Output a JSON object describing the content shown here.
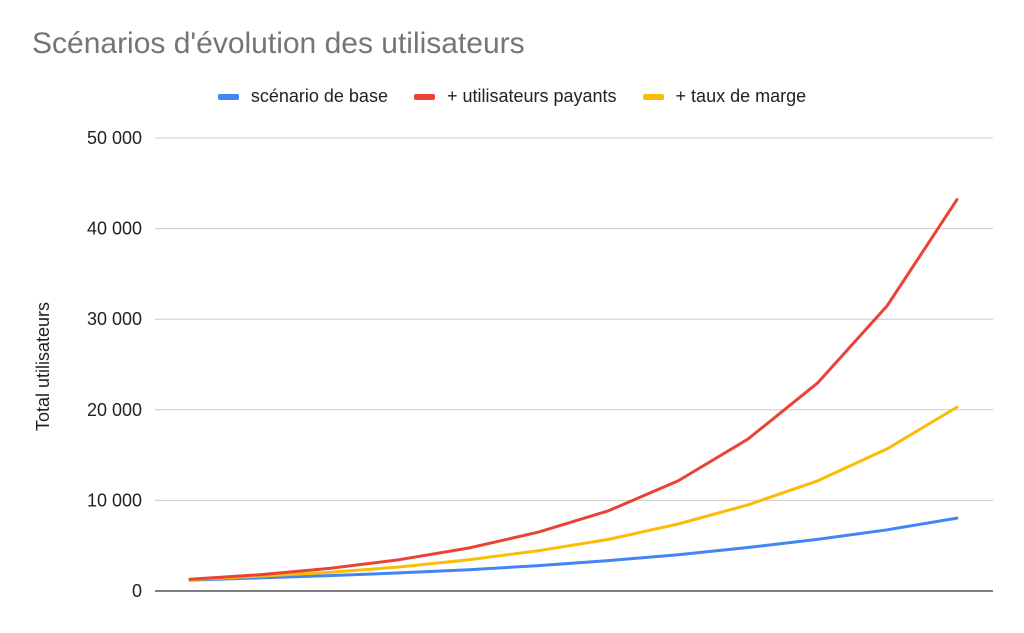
{
  "chart_data": {
    "type": "line",
    "title": "Scénarios d'évolution des utilisateurs",
    "xlabel": "",
    "ylabel": "Total utilisateurs",
    "ylim": [
      0,
      50000
    ],
    "yticks": [
      0,
      10000,
      20000,
      30000,
      40000,
      50000
    ],
    "ytick_labels": [
      "0",
      "10 000",
      "20 000",
      "30 000",
      "40 000",
      "50 000"
    ],
    "grid": true,
    "legend_position": "top",
    "x": [
      1,
      2,
      3,
      4,
      5,
      6,
      7,
      8,
      9,
      10,
      11,
      12
    ],
    "series": [
      {
        "name": "scénario de base",
        "color": "#4285F4",
        "values": [
          1200,
          1450,
          1700,
          2000,
          2350,
          2800,
          3350,
          4000,
          4800,
          5700,
          6750,
          8050
        ]
      },
      {
        "name": "+ utilisateurs payants",
        "color": "#EA4335",
        "values": [
          1300,
          1800,
          2500,
          3450,
          4750,
          6500,
          8850,
          12150,
          16750,
          22950,
          31500,
          43200
        ]
      },
      {
        "name": "+ taux de marge",
        "color": "#FBBC04",
        "values": [
          1250,
          1650,
          2050,
          2650,
          3450,
          4450,
          5700,
          7400,
          9500,
          12150,
          15700,
          20300
        ]
      }
    ]
  }
}
